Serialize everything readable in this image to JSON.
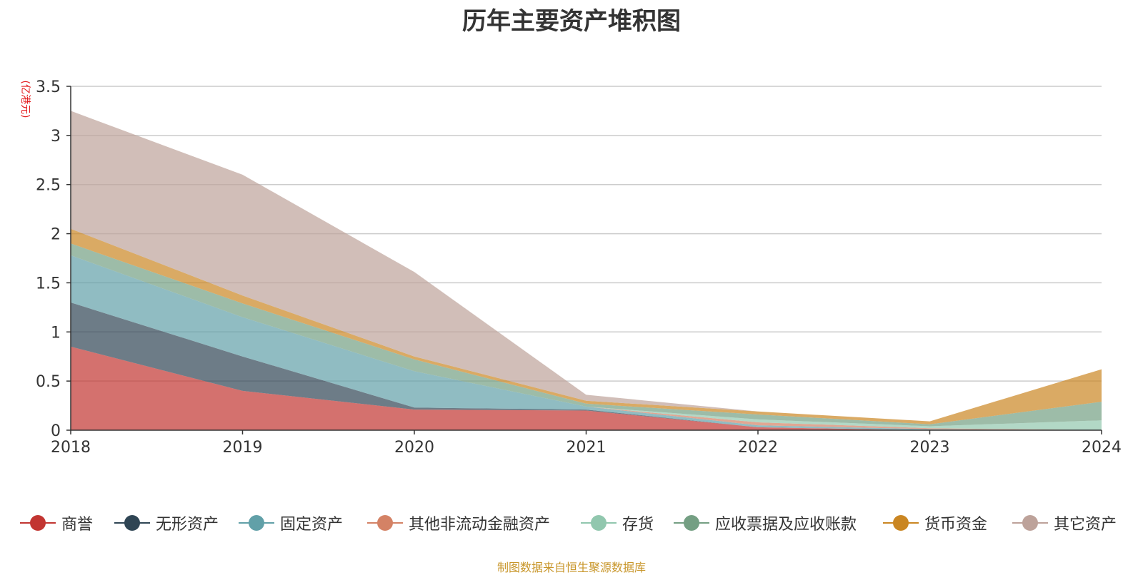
{
  "title": "历年主要资产堆积图",
  "y_unit": "(亿港元)",
  "source_note": "制图数据来自恒生聚源数据库",
  "chart_data": {
    "type": "area",
    "stacked": true,
    "title": "历年主要资产堆积图",
    "ylabel": "(亿港元)",
    "xlabel": "",
    "x": [
      "2018",
      "2019",
      "2020",
      "2021",
      "2022",
      "2023",
      "2024"
    ],
    "ylim": [
      0,
      3.5
    ],
    "yticks": [
      "0",
      "0.5",
      "1",
      "1.5",
      "2",
      "2.5",
      "3",
      "3.5"
    ],
    "grid": true,
    "legend_position": "bottom",
    "series": [
      {
        "name": "商誉",
        "color": "#c23531",
        "values": [
          0.85,
          0.4,
          0.21,
          0.2,
          0.03,
          0.0,
          0.0
        ]
      },
      {
        "name": "无形资产",
        "color": "#2f4554",
        "values": [
          0.45,
          0.35,
          0.02,
          0.01,
          0.0,
          0.0,
          0.0
        ]
      },
      {
        "name": "固定资产",
        "color": "#61a0a8",
        "values": [
          0.48,
          0.4,
          0.37,
          0.03,
          0.02,
          0.01,
          0.0
        ]
      },
      {
        "name": "其他非流动金融资产",
        "color": "#d48265",
        "values": [
          0.0,
          0.0,
          0.0,
          0.0,
          0.03,
          0.01,
          0.0
        ]
      },
      {
        "name": "存货",
        "color": "#91c7ae",
        "values": [
          0.0,
          0.0,
          0.0,
          0.0,
          0.03,
          0.02,
          0.1
        ]
      },
      {
        "name": "应收票据及应收账款",
        "color": "#749f83",
        "values": [
          0.12,
          0.14,
          0.12,
          0.03,
          0.05,
          0.02,
          0.19
        ]
      },
      {
        "name": "货币资金",
        "color": "#ca8622",
        "values": [
          0.15,
          0.08,
          0.03,
          0.03,
          0.03,
          0.03,
          0.33
        ]
      },
      {
        "name": "其它资产",
        "color": "#bda29a",
        "values": [
          1.2,
          1.23,
          0.86,
          0.06,
          0.0,
          0.0,
          0.0
        ]
      }
    ]
  }
}
